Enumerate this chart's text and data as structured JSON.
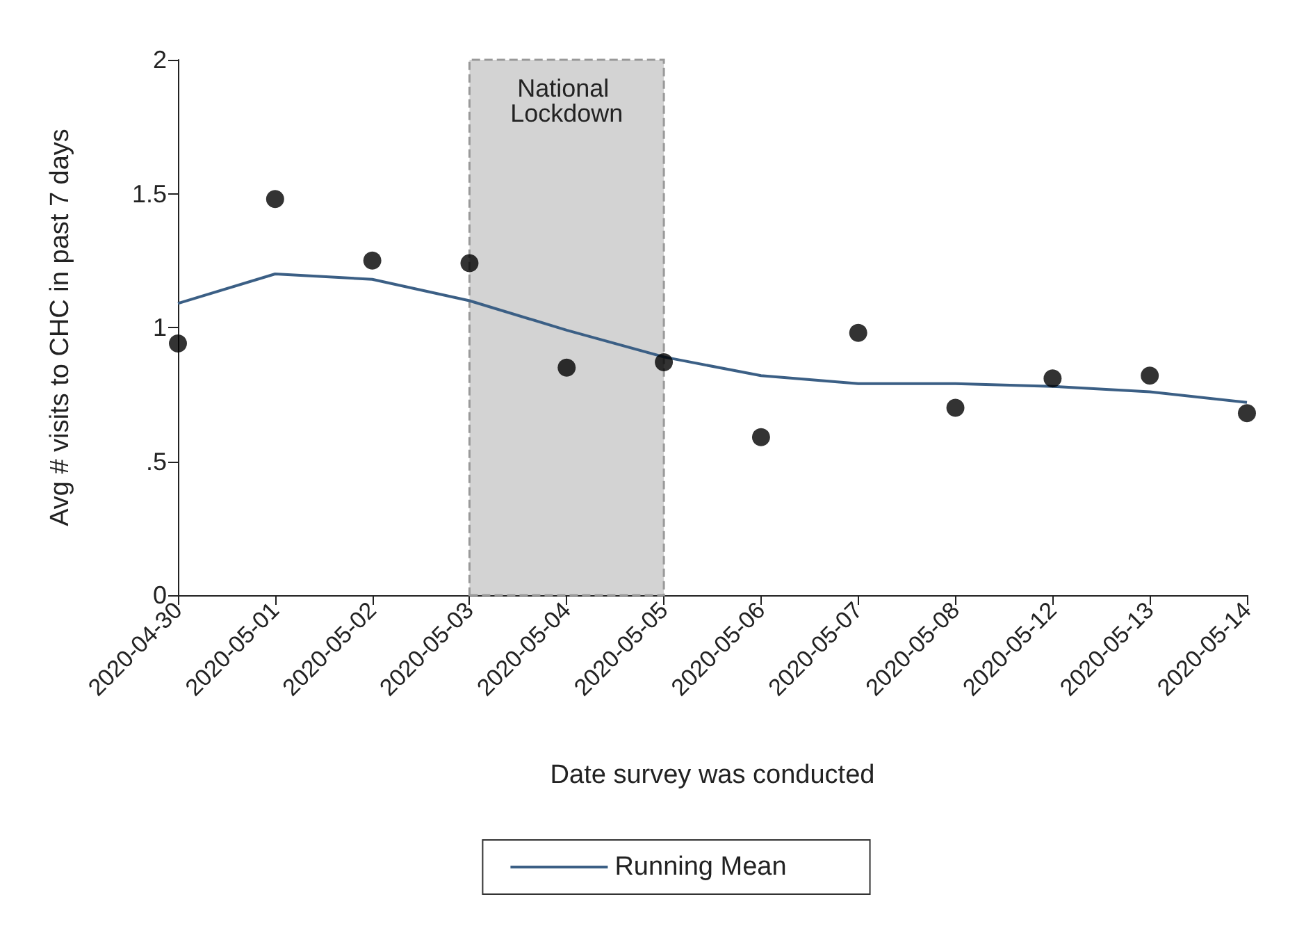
{
  "chart_data": {
    "type": "scatter",
    "xlabel": "Date survey was conducted",
    "ylabel": "Avg # visits to CHC in past 7 days",
    "categories": [
      "2020-04-30",
      "2020-05-01",
      "2020-05-02",
      "2020-05-03",
      "2020-05-04",
      "2020-05-05",
      "2020-05-06",
      "2020-05-07",
      "2020-05-08",
      "2020-05-12",
      "2020-05-13",
      "2020-05-14"
    ],
    "series": [
      {
        "color": "#000000",
        "values": [
          0.94,
          1.48,
          1.25,
          1.24,
          0.85,
          0.87,
          0.59,
          0.98,
          0.7,
          0.81,
          0.82,
          0.68
        ]
      },
      {
        "type": "line",
        "name": "Running Mean",
        "marker": "none",
        "color": "#3b5f85",
        "values": [
          1.09,
          1.2,
          1.18,
          1.1,
          0.99,
          0.89,
          0.82,
          0.79,
          0.79,
          0.78,
          0.76,
          0.72
        ]
      }
    ],
    "ylim": [
      0,
      2
    ],
    "yticks": [
      0,
      {
        "value": 0.5,
        "label": ".5"
      },
      1,
      1.5,
      2
    ],
    "bands": [
      {
        "axis": "x",
        "from": "2020-05-03",
        "to": "2020-05-05",
        "label": "National Lockdown",
        "color": "#d3d3d3"
      }
    ],
    "marker": "circle",
    "line_style": "solid",
    "grid": false,
    "legend": "bottom"
  }
}
